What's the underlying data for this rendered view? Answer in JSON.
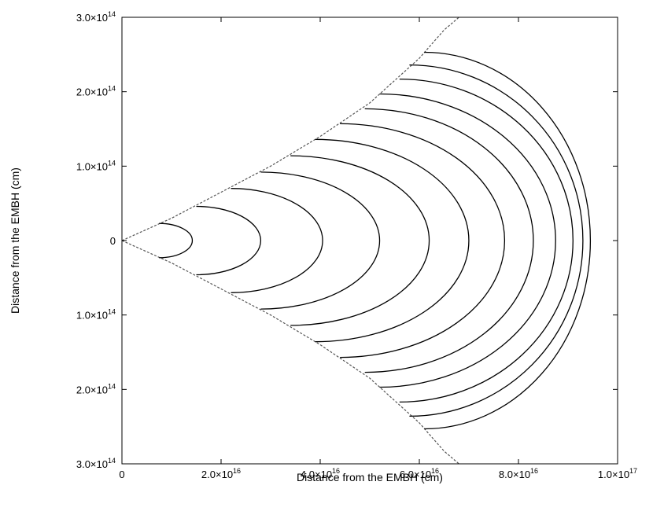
{
  "chart_data": {
    "type": "line",
    "title": "",
    "xlabel": "Distance from the EMBH (cm)",
    "ylabel": "Distance from the EMBH (cm)",
    "xlim": [
      0,
      1e+17
    ],
    "ylim": [
      -300000000000000.0,
      300000000000000.0
    ],
    "grid": false,
    "legend": "none",
    "x_ticks": [
      {
        "value": 0,
        "label": "0"
      },
      {
        "value": 2e+16,
        "label": "2.0×10",
        "exp": "16"
      },
      {
        "value": 4e+16,
        "label": "4.0×10",
        "exp": "16"
      },
      {
        "value": 6e+16,
        "label": "6.0×10",
        "exp": "16"
      },
      {
        "value": 8e+16,
        "label": "8.0×10",
        "exp": "16"
      },
      {
        "value": 1e+17,
        "label": "1.0×10",
        "exp": "17"
      }
    ],
    "y_ticks": [
      {
        "value": 300000000000000.0,
        "label": "3.0×10",
        "exp": "14"
      },
      {
        "value": 200000000000000.0,
        "label": "2.0×10",
        "exp": "14"
      },
      {
        "value": 100000000000000.0,
        "label": "1.0×10",
        "exp": "14"
      },
      {
        "value": 0,
        "label": "0"
      },
      {
        "value": -100000000000000.0,
        "label": "1.0×10",
        "exp": "14"
      },
      {
        "value": -200000000000000.0,
        "label": "2.0×10",
        "exp": "14"
      },
      {
        "value": -300000000000000.0,
        "label": "3.0×10",
        "exp": "14"
      }
    ],
    "boundary": {
      "style": "dashed",
      "color": "#555555",
      "points": [
        [
          0,
          0
        ],
        [
          1e+16,
          30000000000000.0
        ],
        [
          2e+16,
          65000000000000.0
        ],
        [
          3e+16,
          100000000000000.0
        ],
        [
          4e+16,
          140000000000000.0
        ],
        [
          5e+16,
          185000000000000.0
        ],
        [
          6e+16,
          245000000000000.0
        ],
        [
          6.5e+16,
          283000000000000.0
        ],
        [
          6.8e+16,
          300000000000000.0
        ]
      ]
    },
    "arcs": [
      {
        "x0": 7500000000000000.0,
        "half_height": 23000000000000.0,
        "x_max": 1.42e+16
      },
      {
        "x0": 1.5e+16,
        "half_height": 46000000000000.0,
        "x_max": 2.8e+16
      },
      {
        "x0": 2.2e+16,
        "half_height": 70000000000000.0,
        "x_max": 4.05e+16
      },
      {
        "x0": 2.8e+16,
        "half_height": 92000000000000.0,
        "x_max": 5.2e+16
      },
      {
        "x0": 3.4e+16,
        "half_height": 114000000000000.0,
        "x_max": 6.2e+16
      },
      {
        "x0": 3.9e+16,
        "half_height": 136000000000000.0,
        "x_max": 7e+16
      },
      {
        "x0": 4.4e+16,
        "half_height": 157000000000000.0,
        "x_max": 7.72e+16
      },
      {
        "x0": 4.9e+16,
        "half_height": 177000000000000.0,
        "x_max": 8.3e+16
      },
      {
        "x0": 5.2e+16,
        "half_height": 197000000000000.0,
        "x_max": 8.75e+16
      },
      {
        "x0": 5.6e+16,
        "half_height": 217000000000000.0,
        "x_max": 9.1e+16
      },
      {
        "x0": 5.8e+16,
        "half_height": 236000000000000.0,
        "x_max": 9.3e+16
      },
      {
        "x0": 6.1e+16,
        "half_height": 253000000000000.0,
        "x_max": 9.45e+16
      }
    ]
  }
}
